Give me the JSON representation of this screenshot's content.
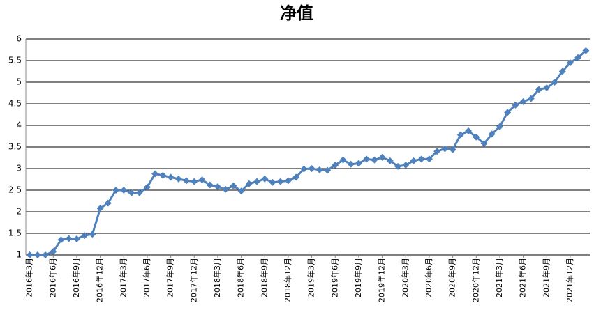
{
  "chart_data": {
    "type": "line",
    "title": "净值",
    "categories": [
      "2016年3月",
      null,
      null,
      "2016年6月",
      null,
      null,
      "2016年9月",
      null,
      null,
      "2016年12月",
      null,
      null,
      "2017年3月",
      null,
      null,
      "2017年6月",
      null,
      null,
      "2017年9月",
      null,
      null,
      "2017年12月",
      null,
      null,
      "2018年3月",
      null,
      null,
      "2018年6月",
      null,
      null,
      "2018年9月",
      null,
      null,
      "2018年12月",
      null,
      null,
      "2019年3月",
      null,
      null,
      "2019年6月",
      null,
      null,
      "2019年9月",
      null,
      null,
      "2019年12月",
      null,
      null,
      "2020年3月",
      null,
      null,
      "2020年6月",
      null,
      null,
      "2020年9月",
      null,
      null,
      "2020年12月",
      null,
      null,
      "2021年3月",
      null,
      null,
      "2021年6月",
      null,
      null,
      "2021年9月",
      null,
      null,
      "2021年12月",
      null,
      null
    ],
    "values": [
      1.0,
      1.0,
      1.0,
      1.08,
      1.35,
      1.38,
      1.37,
      1.45,
      1.48,
      2.08,
      2.2,
      2.5,
      2.5,
      2.44,
      2.44,
      2.57,
      2.88,
      2.84,
      2.8,
      2.76,
      2.72,
      2.7,
      2.74,
      2.62,
      2.58,
      2.52,
      2.6,
      2.48,
      2.65,
      2.7,
      2.76,
      2.68,
      2.7,
      2.72,
      2.8,
      2.99,
      3.0,
      2.97,
      2.96,
      3.08,
      3.2,
      3.1,
      3.12,
      3.22,
      3.2,
      3.26,
      3.18,
      3.05,
      3.08,
      3.18,
      3.22,
      3.22,
      3.4,
      3.46,
      3.44,
      3.78,
      3.87,
      3.73,
      3.58,
      3.8,
      3.97,
      4.3,
      4.47,
      4.55,
      4.62,
      4.83,
      4.87,
      5.0,
      5.25,
      5.45,
      5.57,
      5.73
    ],
    "color": "#4f81bd",
    "ylim": [
      1,
      6
    ],
    "yticks": [
      1,
      1.5,
      2,
      2.5,
      3,
      3.5,
      4,
      4.5,
      5,
      5.5,
      6
    ],
    "grid": true
  }
}
